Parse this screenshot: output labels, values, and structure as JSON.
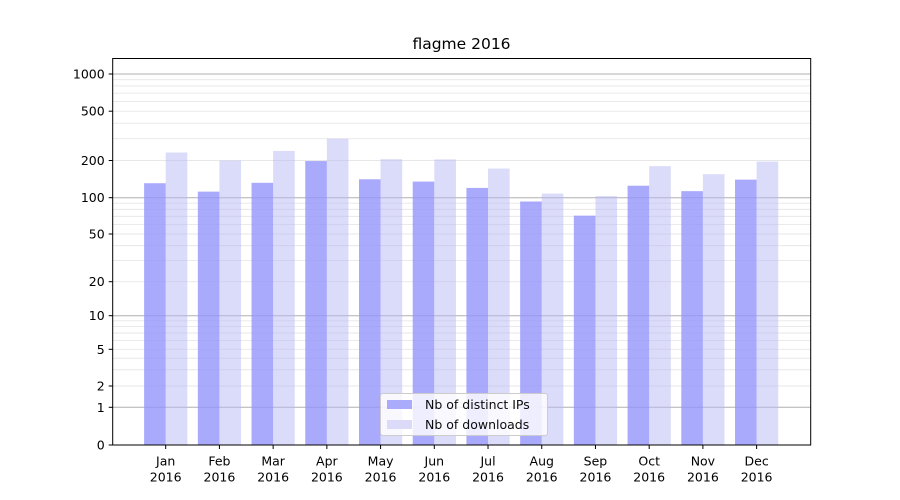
{
  "title": "flagme 2016",
  "legend": {
    "position": "lower center",
    "items": [
      {
        "label": "Nb of distinct IPs"
      },
      {
        "label": "Nb of downloads"
      }
    ]
  },
  "colors": {
    "bar_distinct_ips": "rgba(149,149,252,0.8)",
    "bar_downloads": "rgba(184,184,246,0.5)",
    "legend_swatch_ips": "#ababfc",
    "legend_swatch_downloads": "#dbdbf9",
    "grid_major": "#b0b0b0",
    "grid_minor": "#e7e7e7",
    "axis": "#000000",
    "text": "#000000"
  },
  "y_tick_labels": [
    "0",
    "1",
    "2",
    "5",
    "10",
    "20",
    "50",
    "100",
    "200",
    "500",
    "1000"
  ],
  "chart_data": {
    "type": "bar",
    "title": "flagme 2016",
    "categories": [
      "Jan 2016",
      "Feb 2016",
      "Mar 2016",
      "Apr 2016",
      "May 2016",
      "Jun 2016",
      "Jul 2016",
      "Aug 2016",
      "Sep 2016",
      "Oct 2016",
      "Nov 2016",
      "Dec 2016"
    ],
    "series": [
      {
        "name": "Nb of distinct IPs",
        "values": [
          131,
          112,
          132,
          198,
          141,
          135,
          120,
          93,
          71,
          125,
          113,
          140
        ]
      },
      {
        "name": "Nb of downloads",
        "values": [
          232,
          200,
          239,
          300,
          205,
          204,
          172,
          108,
          103,
          180,
          155,
          196
        ]
      }
    ],
    "xlabel": "",
    "ylabel": "",
    "yscale": "symlog",
    "y_ticks": [
      0,
      1,
      2,
      5,
      10,
      20,
      50,
      100,
      200,
      500,
      1000
    ],
    "ylim": [
      0,
      1300
    ],
    "grid": true,
    "legend_position": "lower center"
  }
}
